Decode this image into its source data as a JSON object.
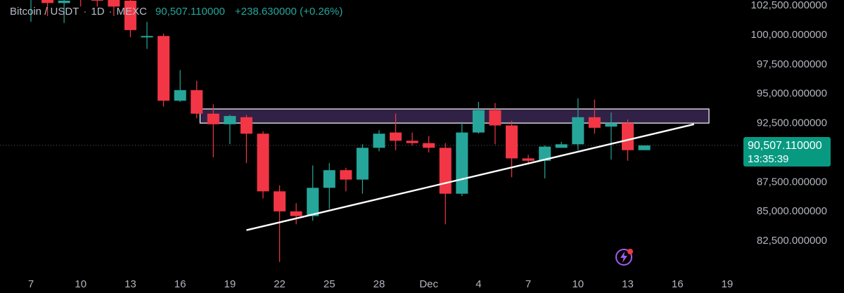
{
  "header": {
    "symbol": "Bitcoin / USDT",
    "interval": "1D",
    "exchange": "MEXC",
    "last_price": "90,507.110000",
    "change": "+238.630000 (+0.26%)"
  },
  "price_tag": {
    "price": "90,507.110000",
    "countdown": "13:35:39"
  },
  "colors": {
    "up": "#26a69a",
    "down": "#f23645",
    "background": "#000000",
    "zone_fill": "#3b2752",
    "zone_border": "#ffffff",
    "trendline": "#ffffff",
    "axis_text": "#b2b5be",
    "price_tag": "#089981",
    "flash_icon": "#a45de8"
  },
  "icons": {
    "flash": "lightning-badge-icon"
  },
  "chart_data": {
    "type": "candlestick",
    "title": "Bitcoin / USDT · 1D · MEXC",
    "y_tick_labels": [
      "102,500.000000",
      "100,000.000000",
      "97,500.000000",
      "95,000.000000",
      "92,500.000000",
      "87,500.000000",
      "85,000.000000",
      "82,500.000000"
    ],
    "y_ticks": [
      102500,
      100000,
      97500,
      95000,
      92500,
      87500,
      85000,
      82500
    ],
    "x_tick_labels": [
      "7",
      "10",
      "13",
      "16",
      "19",
      "22",
      "25",
      "28",
      "Dec",
      "4",
      "7",
      "10",
      "13",
      "16",
      "19"
    ],
    "x_tick_days": [
      7,
      10,
      13,
      16,
      19,
      22,
      25,
      28,
      31,
      34,
      37,
      40,
      43,
      46,
      49
    ],
    "x_day_note": "day index: Nov 7 = 7 ... Dec 1 = 31, Dec 13 = 43",
    "ylim": [
      80500,
      102700
    ],
    "candles": [
      {
        "d": 7,
        "o": 104000,
        "h": 105500,
        "l": 101000,
        "c": 104200
      },
      {
        "d": 8,
        "o": 103500,
        "h": 104000,
        "l": 101500,
        "c": 102600
      },
      {
        "d": 9,
        "o": 102600,
        "h": 103500,
        "l": 100900,
        "c": 102800
      },
      {
        "d": 10,
        "o": 104000,
        "h": 104500,
        "l": 102300,
        "c": 103600
      },
      {
        "d": 11,
        "o": 104000,
        "h": 104200,
        "l": 102300,
        "c": 102800
      },
      {
        "d": 12,
        "o": 103200,
        "h": 104000,
        "l": 101500,
        "c": 102300
      },
      {
        "d": 13,
        "o": 102800,
        "h": 103000,
        "l": 99700,
        "c": 100300
      },
      {
        "d": 14,
        "o": 99700,
        "h": 101000,
        "l": 98700,
        "c": 99800
      },
      {
        "d": 15,
        "o": 99800,
        "h": 100000,
        "l": 93800,
        "c": 94300
      },
      {
        "d": 16,
        "o": 94300,
        "h": 96900,
        "l": 94200,
        "c": 95200
      },
      {
        "d": 17,
        "o": 95200,
        "h": 96000,
        "l": 92800,
        "c": 93200
      },
      {
        "d": 18,
        "o": 93200,
        "h": 94000,
        "l": 89500,
        "c": 92300
      },
      {
        "d": 19,
        "o": 92300,
        "h": 93100,
        "l": 90600,
        "c": 93000
      },
      {
        "d": 20,
        "o": 92900,
        "h": 93100,
        "l": 89000,
        "c": 91500
      },
      {
        "d": 21,
        "o": 91500,
        "h": 91700,
        "l": 86000,
        "c": 86600
      },
      {
        "d": 22,
        "o": 86600,
        "h": 87100,
        "l": 80600,
        "c": 84900
      },
      {
        "d": 23,
        "o": 84900,
        "h": 85600,
        "l": 83800,
        "c": 84500
      },
      {
        "d": 24,
        "o": 84500,
        "h": 88800,
        "l": 84100,
        "c": 86900
      },
      {
        "d": 25,
        "o": 86900,
        "h": 89000,
        "l": 85100,
        "c": 88400
      },
      {
        "d": 26,
        "o": 88400,
        "h": 88600,
        "l": 86600,
        "c": 87600
      },
      {
        "d": 27,
        "o": 87600,
        "h": 90600,
        "l": 86400,
        "c": 90300
      },
      {
        "d": 28,
        "o": 90300,
        "h": 91800,
        "l": 90000,
        "c": 91500
      },
      {
        "d": 29,
        "o": 91600,
        "h": 93200,
        "l": 90100,
        "c": 90900
      },
      {
        "d": 30,
        "o": 90900,
        "h": 91600,
        "l": 90500,
        "c": 90700
      },
      {
        "d": 31,
        "o": 90700,
        "h": 91300,
        "l": 89900,
        "c": 90300
      },
      {
        "d": 32,
        "o": 90300,
        "h": 90700,
        "l": 83800,
        "c": 86400
      },
      {
        "d": 33,
        "o": 86400,
        "h": 92500,
        "l": 86200,
        "c": 91600
      },
      {
        "d": 34,
        "o": 91600,
        "h": 94200,
        "l": 91500,
        "c": 93500
      },
      {
        "d": 35,
        "o": 93500,
        "h": 94100,
        "l": 90600,
        "c": 92200
      },
      {
        "d": 36,
        "o": 92200,
        "h": 92600,
        "l": 87800,
        "c": 89400
      },
      {
        "d": 37,
        "o": 89400,
        "h": 89700,
        "l": 88900,
        "c": 89200
      },
      {
        "d": 38,
        "o": 89200,
        "h": 90500,
        "l": 87700,
        "c": 90400
      },
      {
        "d": 39,
        "o": 90300,
        "h": 90800,
        "l": 90300,
        "c": 90600
      },
      {
        "d": 40,
        "o": 90600,
        "h": 94500,
        "l": 90100,
        "c": 92900
      },
      {
        "d": 41,
        "o": 92900,
        "h": 94400,
        "l": 91500,
        "c": 92000
      },
      {
        "d": 42,
        "o": 92100,
        "h": 93300,
        "l": 89300,
        "c": 92400
      },
      {
        "d": 43,
        "o": 92400,
        "h": 92700,
        "l": 89200,
        "c": 90100
      },
      {
        "d": 44,
        "o": 90100,
        "h": 90500,
        "l": 90100,
        "c": 90500
      }
    ],
    "resistance_zone": {
      "from_day": 17.2,
      "to_day": 47.9,
      "low": 92400,
      "high": 93600
    },
    "trendline": {
      "from": {
        "d": 20,
        "price": 83300
      },
      "to": {
        "d": 47,
        "price": 92300
      }
    },
    "last_price_line": 90507.11
  }
}
